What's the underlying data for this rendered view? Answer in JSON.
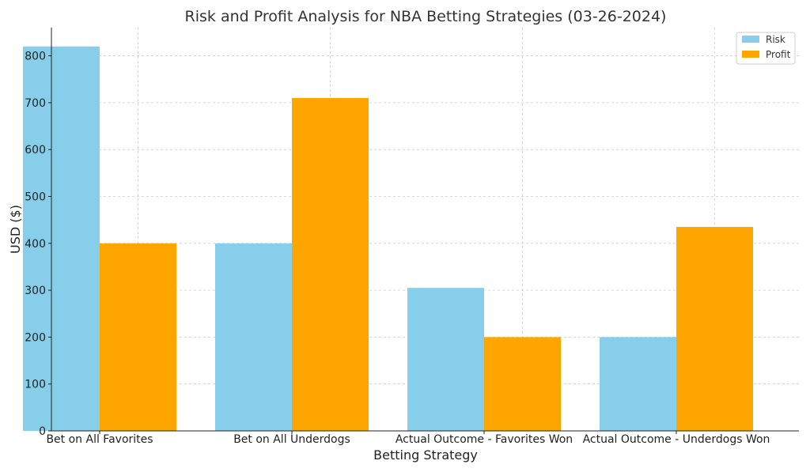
{
  "chart_data": {
    "type": "bar",
    "title": "Risk and Profit Analysis for NBA Betting Strategies (03-26-2024)",
    "xlabel": "Betting Strategy",
    "ylabel": "USD ($)",
    "categories": [
      "Bet on All Favorites",
      "Bet on All Underdogs",
      "Actual Outcome - Favorites Won",
      "Actual Outcome - Underdogs Won"
    ],
    "series": [
      {
        "name": "Risk",
        "color": "#87ceeb",
        "values": [
          820,
          400,
          305,
          200
        ]
      },
      {
        "name": "Profit",
        "color": "#ffa500",
        "values": [
          400,
          710,
          200,
          435
        ]
      }
    ],
    "ylim": [
      0,
      860
    ],
    "yticks": [
      0,
      100,
      200,
      300,
      400,
      500,
      600,
      700,
      800
    ],
    "grid": true,
    "legend_position": "top-right"
  }
}
